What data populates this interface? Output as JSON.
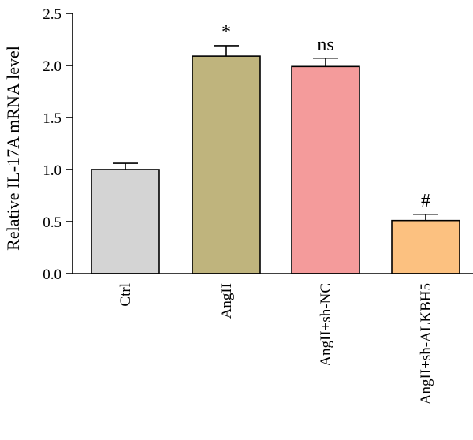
{
  "chart_data": {
    "type": "bar",
    "ylabel": "Relative IL-17A mRNA level",
    "xlabel": "",
    "ylim": [
      0,
      2.5
    ],
    "yticks": [
      "0.0",
      "0.5",
      "1.0",
      "1.5",
      "2.0",
      "2.5"
    ],
    "categories": [
      "Ctrl",
      "AngII",
      "AngII+sh-NC",
      "AngII+sh-ALKBH5"
    ],
    "values": [
      1.0,
      2.09,
      1.99,
      0.51
    ],
    "errors": [
      0.06,
      0.1,
      0.08,
      0.06
    ],
    "annotations": [
      "",
      "*",
      "ns",
      "#"
    ],
    "colors": [
      "#d4d4d4",
      "#bfb47d",
      "#f49b9b",
      "#fcc180"
    ],
    "bar_edge_color": "#000000",
    "grid": false,
    "legend": "none"
  }
}
